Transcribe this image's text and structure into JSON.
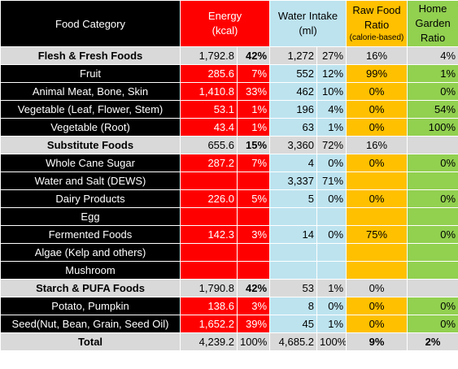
{
  "header": {
    "category": "Food Category",
    "energy_line1": "Energy",
    "energy_line2": "(kcal)",
    "water_line1": "Water Intake",
    "water_line2": "(ml)",
    "raw_line1": "Raw Food",
    "raw_line2": "Ratio",
    "raw_line3": "(calorie-based)",
    "home_line1": "Home",
    "home_line2": "Garden",
    "home_line3": "Ratio"
  },
  "rows": [
    {
      "name": "Flesh & Fresh Foods",
      "energy": "1,792.8",
      "energy_pct": "42%",
      "water": "1,272",
      "water_pct": "27%",
      "raw": "16%",
      "home": "4%"
    },
    {
      "name": "Fruit",
      "energy": "285.6",
      "energy_pct": "7%",
      "water": "552",
      "water_pct": "12%",
      "raw": "99%",
      "home": "1%"
    },
    {
      "name": "Animal Meat, Bone, Skin",
      "energy": "1,410.8",
      "energy_pct": "33%",
      "water": "462",
      "water_pct": "10%",
      "raw": "0%",
      "home": "0%"
    },
    {
      "name": "Vegetable (Leaf, Flower, Stem)",
      "energy": "53.1",
      "energy_pct": "1%",
      "water": "196",
      "water_pct": "4%",
      "raw": "0%",
      "home": "54%"
    },
    {
      "name": "Vegetable (Root)",
      "energy": "43.4",
      "energy_pct": "1%",
      "water": "63",
      "water_pct": "1%",
      "raw": "0%",
      "home": "100%"
    },
    {
      "name": "Substitute Foods",
      "energy": "655.6",
      "energy_pct": "15%",
      "water": "3,360",
      "water_pct": "72%",
      "raw": "16%",
      "home": ""
    },
    {
      "name": "Whole Cane Sugar",
      "energy": "287.2",
      "energy_pct": "7%",
      "water": "4",
      "water_pct": "0%",
      "raw": "0%",
      "home": "0%"
    },
    {
      "name": "Water and Salt (DEWS)",
      "energy": "",
      "energy_pct": "",
      "water": "3,337",
      "water_pct": "71%",
      "raw": "",
      "home": ""
    },
    {
      "name": "Dairy Products",
      "energy": "226.0",
      "energy_pct": "5%",
      "water": "5",
      "water_pct": "0%",
      "raw": "0%",
      "home": "0%"
    },
    {
      "name": "Egg",
      "energy": "",
      "energy_pct": "",
      "water": "",
      "water_pct": "",
      "raw": "",
      "home": ""
    },
    {
      "name": "Fermented Foods",
      "energy": "142.3",
      "energy_pct": "3%",
      "water": "14",
      "water_pct": "0%",
      "raw": "75%",
      "home": "0%"
    },
    {
      "name": "Algae (Kelp and others)",
      "energy": "",
      "energy_pct": "",
      "water": "",
      "water_pct": "",
      "raw": "",
      "home": ""
    },
    {
      "name": "Mushroom",
      "energy": "",
      "energy_pct": "",
      "water": "",
      "water_pct": "",
      "raw": "",
      "home": ""
    },
    {
      "name": "Starch & PUFA Foods",
      "energy": "1,790.8",
      "energy_pct": "42%",
      "water": "53",
      "water_pct": "1%",
      "raw": "0%",
      "home": ""
    },
    {
      "name": "Potato, Pumpkin",
      "energy": "138.6",
      "energy_pct": "3%",
      "water": "8",
      "water_pct": "0%",
      "raw": "0%",
      "home": "0%"
    },
    {
      "name": "Seed(Nut, Bean, Grain, Seed Oil)",
      "energy": "1,652.2",
      "energy_pct": "39%",
      "water": "45",
      "water_pct": "1%",
      "raw": "0%",
      "home": "0%"
    },
    {
      "name": "Total",
      "energy": "4,239.2",
      "energy_pct": "100%",
      "water": "4,685.2",
      "water_pct": "100%",
      "raw": "9%",
      "home": "2%"
    }
  ],
  "colors": {
    "label_bg": "#000000",
    "energy_bg": "#ff0000",
    "water_bg": "#bde3ef",
    "raw_bg": "#ffc000",
    "home_bg": "#92d050",
    "summary_bg": "#d9d9d9"
  }
}
